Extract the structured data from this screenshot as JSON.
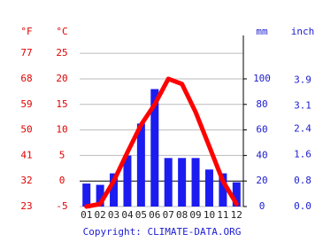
{
  "chart_data": {
    "type": "climate",
    "categories": [
      "01",
      "02",
      "03",
      "04",
      "05",
      "06",
      "07",
      "08",
      "09",
      "10",
      "11",
      "12"
    ],
    "series": [
      {
        "type": "bar",
        "axis": "y2",
        "color": "#1c1cf0",
        "values": [
          18,
          17,
          26,
          40,
          65,
          92,
          38,
          38,
          38,
          29,
          26,
          19
        ]
      },
      {
        "type": "line",
        "color": "#ff0000",
        "values": [
          -5,
          -4.5,
          0,
          5.6,
          11,
          15,
          20,
          19,
          13.5,
          6.8,
          0,
          -4.5
        ]
      }
    ],
    "ylabel": "°C",
    "ylim": [
      -5,
      28.5
    ],
    "yticks": [
      -5,
      0,
      5,
      10,
      15,
      20,
      25
    ],
    "yflabel": "°F",
    "yflim": [
      23,
      83.3
    ],
    "yfticks": [
      23,
      32,
      41,
      50,
      59,
      68,
      77
    ],
    "y2label": "mm",
    "y2lim": [
      0,
      134
    ],
    "y2ticks": [
      0,
      20,
      40,
      60,
      80,
      100
    ],
    "y3label": "inch",
    "y3lim": [
      0,
      5.28
    ],
    "y3ticks": [
      {
        "value": 0,
        "label": "0.0"
      },
      {
        "value": 0.8,
        "label": "0.8"
      },
      {
        "value": 1.6,
        "label": "1.6"
      },
      {
        "value": 2.4,
        "label": "2.4"
      },
      {
        "value": 3.1,
        "label": "3.1"
      },
      {
        "value": 3.9,
        "label": "3.9"
      }
    ],
    "grid": true,
    "footnote": "Copyright: CLIMATE-DATA.ORG"
  }
}
